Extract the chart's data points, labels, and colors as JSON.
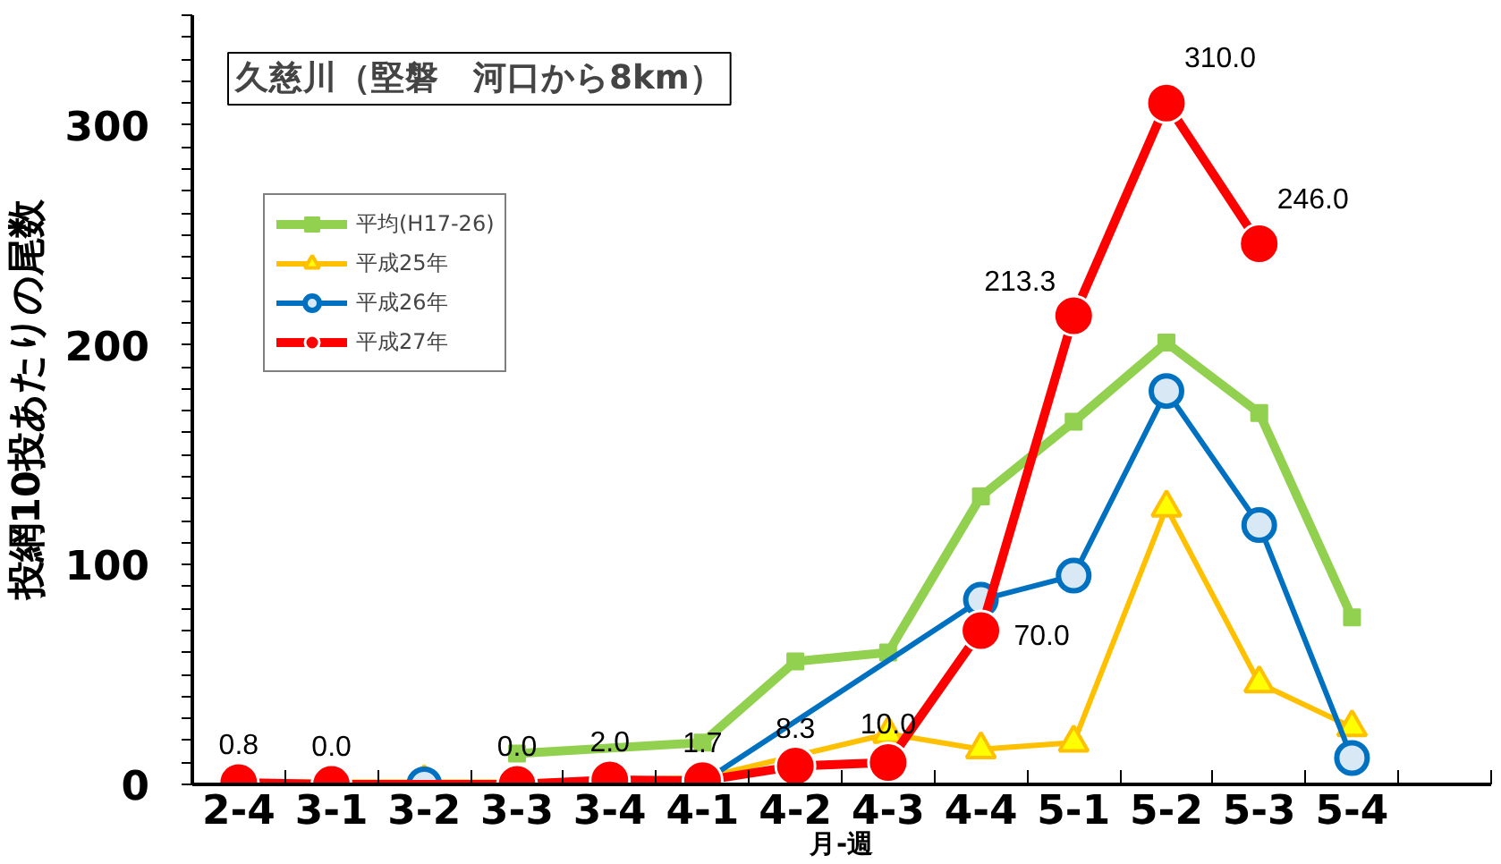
{
  "chart_data": {
    "type": "line",
    "title": "久慈川（堅磐　河口から8km）",
    "xlabel": "月-週",
    "ylabel": "投網10投あたりの尾数",
    "categories": [
      "2-4",
      "3-1",
      "3-2",
      "3-3",
      "3-4",
      "4-1",
      "4-2",
      "4-3",
      "4-4",
      "5-1",
      "5-2",
      "5-3",
      "5-4",
      null
    ],
    "series": [
      {
        "name": "平均(H17-26)",
        "color": "#92d050",
        "marker": "square",
        "values": [
          null,
          null,
          null,
          14,
          null,
          19,
          56,
          60,
          131,
          165,
          201,
          169,
          76,
          null
        ]
      },
      {
        "name": "平成25年",
        "color": "#ffc000",
        "marker": "triangle",
        "values": [
          1,
          1,
          1,
          1,
          2,
          3,
          null,
          23,
          16,
          19,
          126,
          46,
          26,
          null
        ]
      },
      {
        "name": "平成26年",
        "color": "#0070c0",
        "marker": "circle",
        "values": [
          0,
          0,
          0,
          0,
          2,
          1,
          null,
          null,
          84,
          95,
          179,
          118,
          12,
          null
        ]
      },
      {
        "name": "平成27年",
        "color": "#ff0000",
        "marker": "circle",
        "values": [
          0.8,
          0.0,
          null,
          0.0,
          2.0,
          1.7,
          8.3,
          10.0,
          70.0,
          213.3,
          310.0,
          246.0,
          null,
          null
        ],
        "value_labels": [
          "0.8",
          "0.0",
          null,
          "0.0",
          "2.0",
          "1.7",
          "8.3",
          "10.0",
          "70.0",
          "213.3",
          "310.0",
          "246.0",
          null,
          null
        ]
      }
    ],
    "ylim": [
      0,
      350
    ],
    "yticks": [
      0,
      100,
      200,
      300
    ],
    "grid": false,
    "legend": "top left"
  }
}
